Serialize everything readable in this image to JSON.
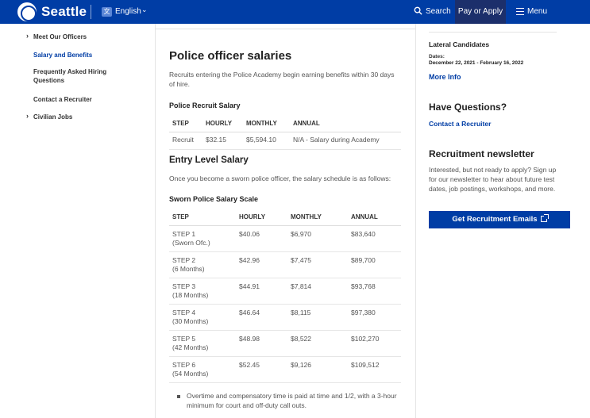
{
  "header": {
    "brand": "Seattle",
    "language": "English",
    "search_label": "Search",
    "pay_label": "Pay or Apply",
    "menu_label": "Menu"
  },
  "sidenav": {
    "items": [
      {
        "label": "Meet Our Officers",
        "expandable": true
      },
      {
        "label": "Salary and Benefits",
        "active": true
      },
      {
        "label": "Frequently Asked Hiring Questions"
      },
      {
        "label": "Contact a Recruiter"
      },
      {
        "label": "Civilian Jobs",
        "expandable": true
      }
    ]
  },
  "main": {
    "title": "Police officer salaries",
    "intro": "Recruits entering the Police Academy begin earning benefits within 30 days of hire.",
    "recruit": {
      "heading": "Police Recruit Salary",
      "headers": [
        "STEP",
        "HOURLY",
        "MONTHLY",
        "ANNUAL"
      ],
      "row": [
        "Recruit",
        "$32.15",
        "$5,594.10",
        "N/A - Salary during Academy"
      ]
    },
    "entry_heading": "Entry Level Salary",
    "entry_text": "Once you become a sworn police officer, the salary schedule is as follows:",
    "sworn": {
      "heading": "Sworn Police Salary Scale",
      "headers": [
        "STEP",
        "HOURLY",
        "MONTHLY",
        "ANNUAL"
      ],
      "rows": [
        {
          "step": "STEP 1",
          "sub": "(Sworn Ofc.)",
          "hourly": "$40.06",
          "monthly": "$6,970",
          "annual": "$83,640"
        },
        {
          "step": "STEP 2",
          "sub": "(6 Months)",
          "hourly": "$42.96",
          "monthly": "$7,475",
          "annual": "$89,700"
        },
        {
          "step": "STEP 3",
          "sub": "(18 Months)",
          "hourly": "$44.91",
          "monthly": "$7,814",
          "annual": "$93,768"
        },
        {
          "step": "STEP 4",
          "sub": "(30 Months)",
          "hourly": "$46.64",
          "monthly": "$8,115",
          "annual": "$97,380"
        },
        {
          "step": "STEP 5",
          "sub": "(42 Months)",
          "hourly": "$48.98",
          "monthly": "$8,522",
          "annual": "$102,270"
        },
        {
          "step": "STEP 6",
          "sub": "(54 Months)",
          "hourly": "$52.45",
          "monthly": "$9,126",
          "annual": "$109,512"
        }
      ]
    },
    "bullet": "Overtime and compensatory time is paid at time and 1/2, with a 3-hour minimum for court and off-duty call outs."
  },
  "sidebar": {
    "lateral_title": "Lateral Candidates",
    "dates_label": "Dates:",
    "dates_value": "December 22, 2021 - February 16, 2022",
    "more_info": "More Info",
    "questions_heading": "Have Questions?",
    "contact_link": "Contact a Recruiter",
    "newsletter_heading": "Recruitment newsletter",
    "newsletter_text": "Interested, but not ready to apply? Sign up for our newsletter to hear about future test dates, job postings, workshops, and more.",
    "cta_label": "Get Recruitment Emails"
  },
  "colors": {
    "brand_blue": "#003da5",
    "pay_button": "#1c2f6b"
  }
}
